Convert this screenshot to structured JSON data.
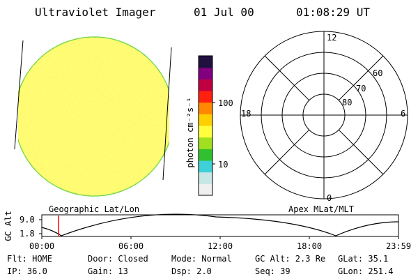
{
  "header": {
    "instrument": "Ultraviolet Imager",
    "date": "01 Jul 00",
    "time": "01:08:29 UT"
  },
  "image_panel": {
    "caption": "Geographic Lat/Lon"
  },
  "colorbar": {
    "unit_label": "photon cm⁻²s⁻¹",
    "tick_labels": [
      "100",
      "10"
    ],
    "colors": [
      "#f0f0f0",
      "#c8e6e6",
      "#40d0d8",
      "#30c030",
      "#a0e020",
      "#ffff40",
      "#ffd000",
      "#ff8800",
      "#ff2010",
      "#c00040",
      "#800080",
      "#201040"
    ]
  },
  "polar_panel": {
    "caption": "Apex MLat/MLT",
    "mlt_labels": [
      "12",
      "18",
      "6",
      "0"
    ],
    "lat_labels": [
      "60",
      "70",
      "80"
    ]
  },
  "altitude_plot": {
    "ylabel": "GC Alt",
    "y_ticks": [
      "9.0",
      "1.8"
    ],
    "x_ticks": [
      "00:00",
      "06:00",
      "12:00",
      "18:00",
      "23:59"
    ],
    "marker_time": "01:08",
    "marker_color": "#ff0000"
  },
  "status": {
    "flt": "Flt: HOME",
    "ip": "IP: 36.0",
    "door": "Door: Closed",
    "gain": "Gain: 13",
    "mode": "Mode: Normal",
    "dsp": "Dsp:    2.0",
    "gc_alt": "GC Alt: 2.3 Re",
    "seq": "Seq: 39",
    "glat": "GLat:  35.1",
    "glon": "GLon: 251.4"
  }
}
